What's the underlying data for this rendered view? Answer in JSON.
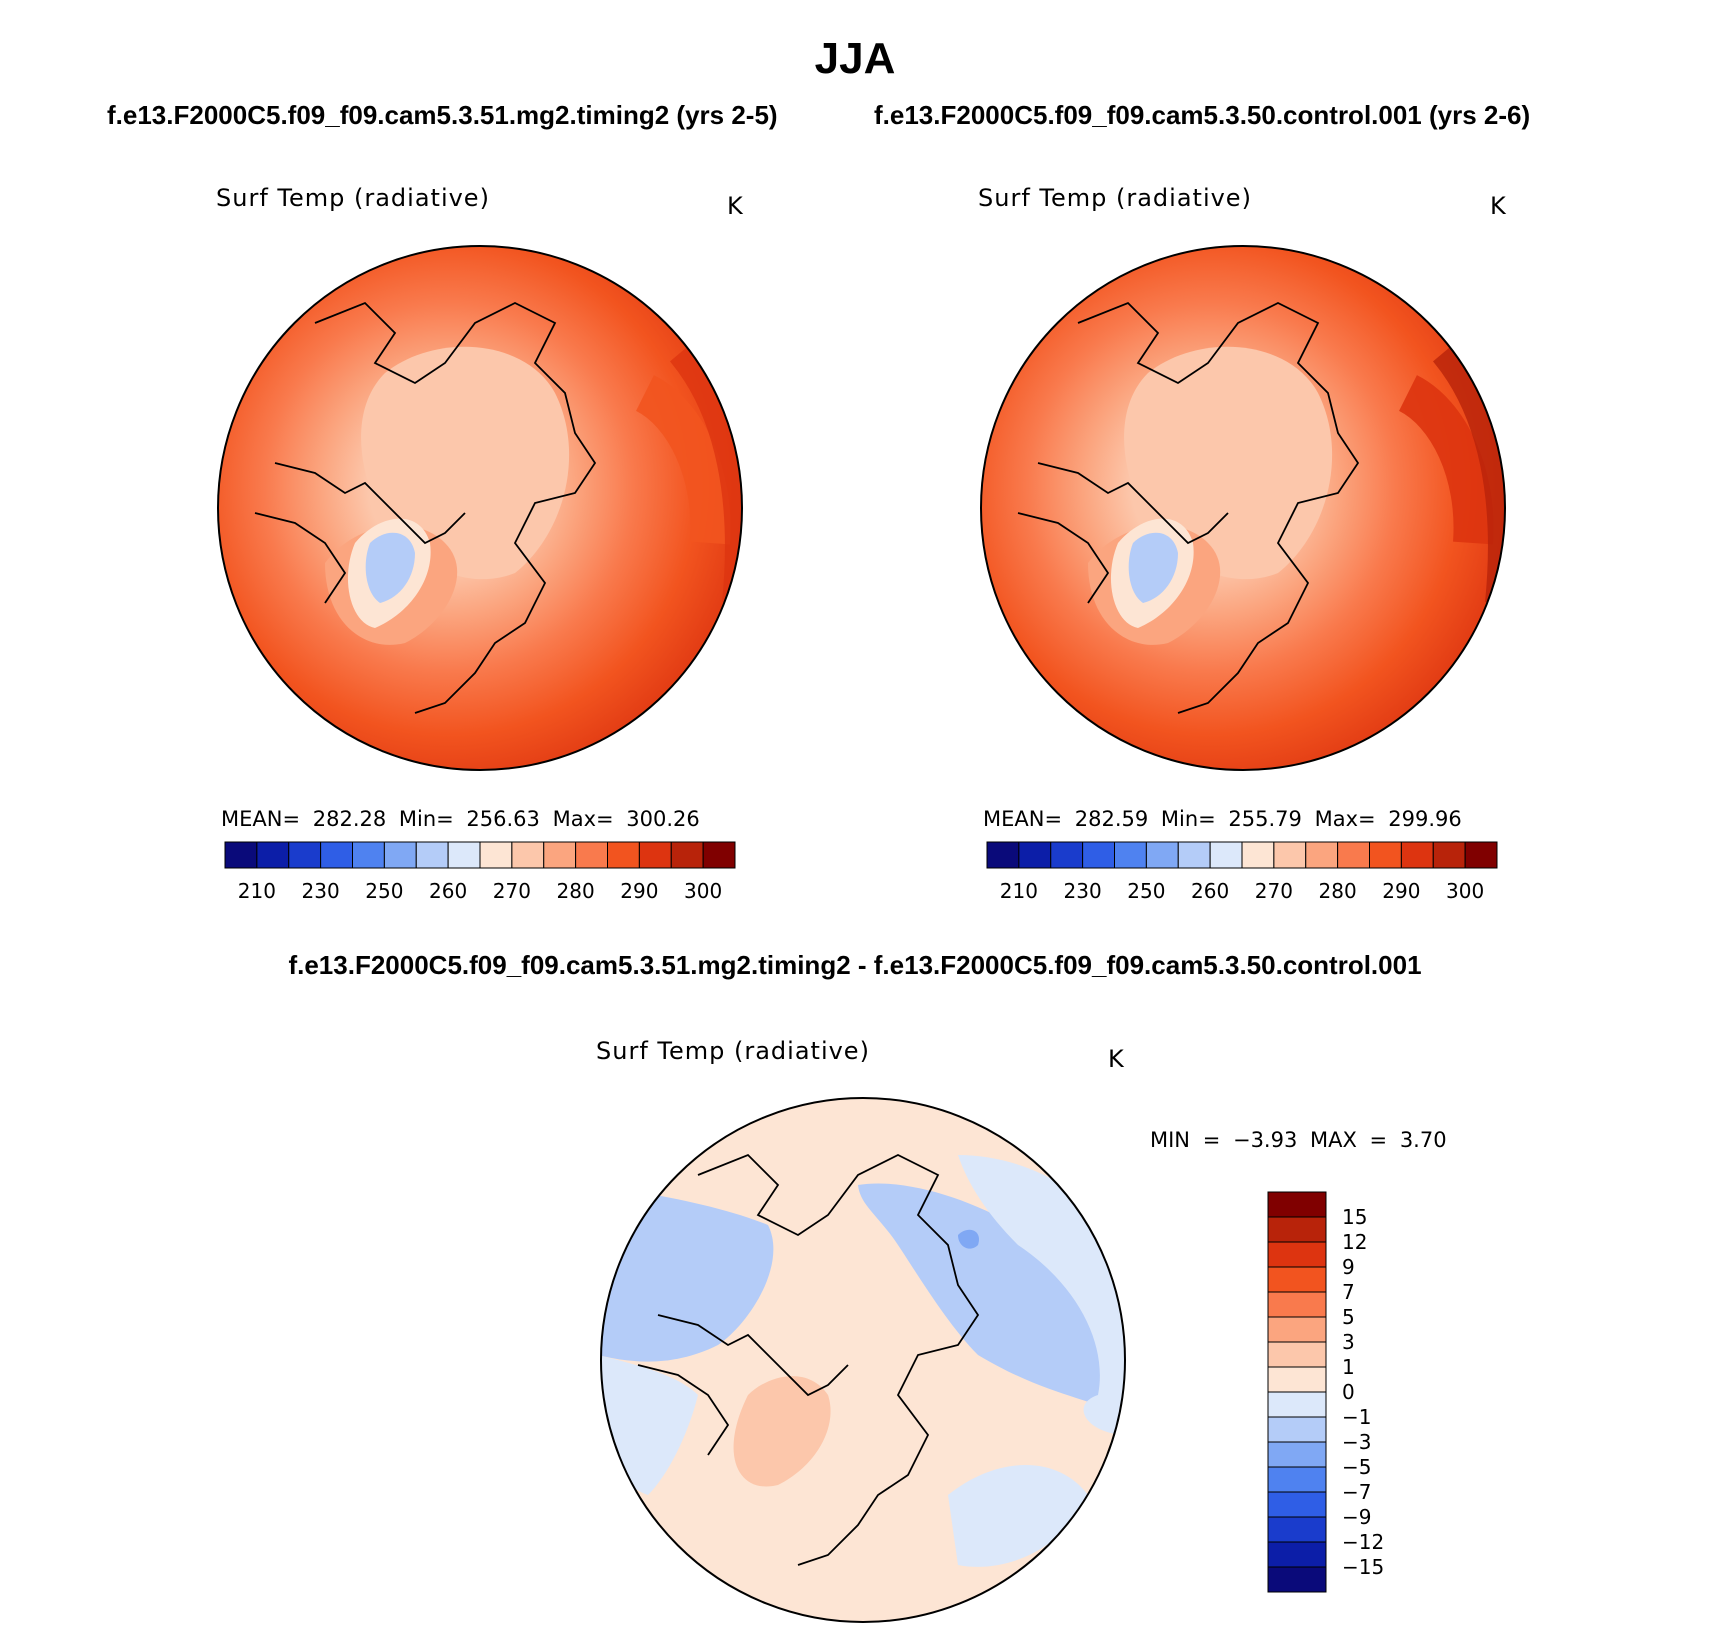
{
  "header": {
    "season": "JJA",
    "case_a": "f.e13.F2000C5.f09_f09.cam5.3.51.mg2.timing2 (yrs 2-5)",
    "case_b": "f.e13.F2000C5.f09_f09.cam5.3.50.control.001 (yrs 2-6)",
    "diff_title": "f.e13.F2000C5.f09_f09.cam5.3.51.mg2.timing2 - f.e13.F2000C5.f09_f09.cam5.3.50.control.001"
  },
  "panels": [
    {
      "variable": "Surf Temp (radiative)",
      "units": "K",
      "stats": "MEAN= 282.28   Min= 256.63   Max= 300.26"
    },
    {
      "variable": "Surf Temp (radiative)",
      "units": "K",
      "stats": "MEAN= 282.59   Min= 255.79   Max= 299.96"
    }
  ],
  "diff_panel": {
    "variable": "Surf Temp (radiative)",
    "units": "K",
    "stats": "MIN =   −3.93  MAX =     3.70"
  },
  "abs_colorbar": {
    "colors": [
      "#0a0a7a",
      "#0c1ea8",
      "#1a3ccc",
      "#2f5ee6",
      "#4f82f0",
      "#80a8f4",
      "#b4ccf8",
      "#dce8fa",
      "#fde5d4",
      "#fcc7ab",
      "#fba57f",
      "#f97a4d",
      "#f2541f",
      "#dd3410",
      "#b8230a",
      "#800000"
    ],
    "tick_labels": [
      "210",
      "230",
      "250",
      "260",
      "270",
      "280",
      "290",
      "300"
    ]
  },
  "diff_colorbar": {
    "colors": [
      "#0a0a7a",
      "#0c1ea8",
      "#1a3ccc",
      "#2f5ee6",
      "#4f82f0",
      "#80a8f4",
      "#b4ccf8",
      "#dce8fa",
      "#fde5d4",
      "#fcc7ab",
      "#fba57f",
      "#f97a4d",
      "#f2541f",
      "#dd3410",
      "#b8230a",
      "#800000"
    ],
    "tick_labels": [
      "15",
      "12",
      "9",
      "7",
      "5",
      "3",
      "1",
      "0",
      "−1",
      "−3",
      "−5",
      "−7",
      "−9",
      "−12",
      "−15"
    ]
  }
}
